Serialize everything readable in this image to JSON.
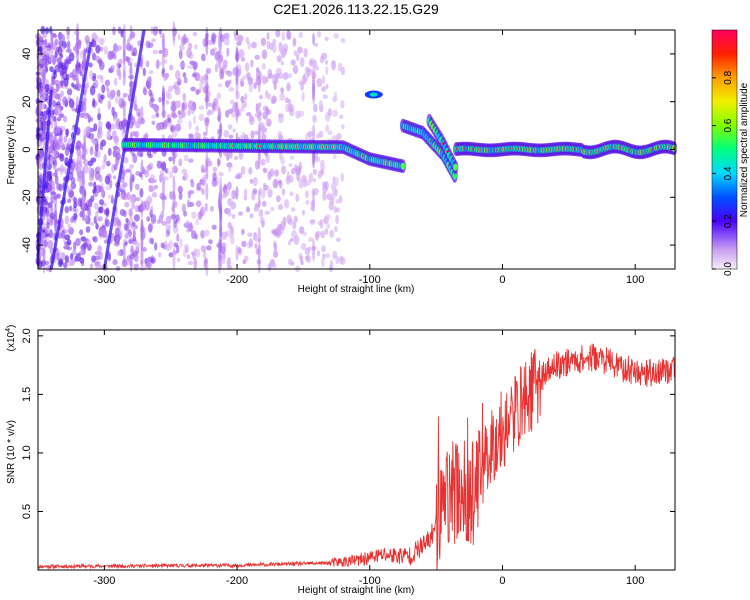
{
  "title": "C2E1.2026.113.22.15.G29",
  "chart_data": [
    {
      "type": "heatmap",
      "xlabel": "Height of straight line (km)",
      "ylabel": "Frequency (Hz)",
      "xlim": [
        -350,
        130
      ],
      "ylim": [
        -50,
        50
      ],
      "xticks": [
        -300,
        -200,
        -100,
        0,
        100
      ],
      "yticks": [
        -40,
        -20,
        0,
        20,
        40
      ],
      "colorbar": {
        "label": "Normalized spectral amplitude",
        "range": [
          0,
          1
        ],
        "ticks": [
          "0.0",
          "0.2",
          "0.4",
          "0.6",
          "0.8"
        ]
      },
      "features": [
        {
          "kind": "main-band",
          "x": [
            -285,
            -120,
            -100,
            -75
          ],
          "y": [
            2,
            1,
            -4,
            -7
          ]
        },
        {
          "kind": "fork-upper",
          "x": [
            -75,
            -60,
            -45,
            -35
          ],
          "y": [
            10,
            7,
            -2,
            -12
          ]
        },
        {
          "kind": "fork-lower",
          "x": [
            -55,
            -45,
            -35
          ],
          "y": [
            12,
            3,
            -8
          ]
        },
        {
          "kind": "blob",
          "x": -97,
          "y": 23
        },
        {
          "kind": "stable-band",
          "x": [
            -35,
            130
          ],
          "y": [
            0,
            0
          ]
        }
      ]
    },
    {
      "type": "line",
      "xlabel": "Height of straight line (km)",
      "ylabel": "SNR (10 * v/v)",
      "multiplier": "(x10",
      "multiplier_exp": "4",
      "multiplier_close": ")",
      "xlim": [
        -350,
        130
      ],
      "ylim": [
        0,
        2.05
      ],
      "xticks": [
        -300,
        -200,
        -100,
        0,
        100
      ],
      "yticks": [
        "0.5",
        "1.0",
        "1.5",
        "2.0"
      ],
      "color": "#e83232",
      "series": [
        {
          "x": [
            -350,
            -200,
            -130,
            -110,
            -90,
            -70,
            -55,
            -45,
            -38,
            -30,
            -25,
            -20,
            -15,
            -10,
            -5,
            0,
            10,
            20,
            30,
            40,
            50,
            60,
            70,
            80,
            90,
            100,
            110,
            120,
            130
          ],
          "y": [
            0.03,
            0.04,
            0.06,
            0.08,
            0.13,
            0.12,
            0.25,
            0.55,
            0.65,
            0.7,
            0.6,
            0.7,
            0.85,
            1.05,
            1.1,
            1.2,
            1.35,
            1.5,
            1.65,
            1.75,
            1.78,
            1.8,
            1.82,
            1.78,
            1.72,
            1.7,
            1.68,
            1.7,
            1.72
          ]
        }
      ]
    }
  ]
}
